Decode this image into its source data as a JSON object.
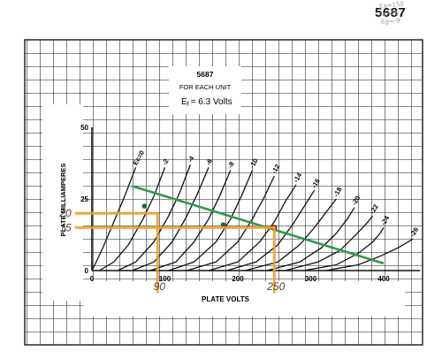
{
  "page": {
    "tube_number": "5687",
    "pencil_note": [
      "Ea=150",
      "Ia=20",
      "Eg=-9"
    ]
  },
  "info_box": {
    "line1": "5687",
    "line2": "FOR EACH UNIT",
    "line3_symbol": "E",
    "line3_sub": "f",
    "line3_rest": "= 6.3 Volts"
  },
  "colors": {
    "grid": "#1a1a1a",
    "curve": "#111111",
    "load_line": "#2e9a4a",
    "markers": "#f0a030",
    "handwriting": "#5a3a2a"
  },
  "chart_data": {
    "type": "line",
    "title": "",
    "xlabel": "PLATE VOLTS",
    "ylabel": "PLATE MILLIAMPERES",
    "xlim": [
      0,
      450
    ],
    "ylim": [
      0,
      50
    ],
    "x_ticks": [
      0,
      100,
      200,
      300,
      400
    ],
    "y_ticks": [
      0,
      25,
      50
    ],
    "grid": true,
    "series": [
      {
        "name": "Ec=0",
        "points": [
          [
            0,
            0
          ],
          [
            5,
            2.5
          ],
          [
            15,
            8
          ],
          [
            30,
            17
          ],
          [
            45,
            26
          ],
          [
            60,
            36
          ]
        ]
      },
      {
        "name": "-2",
        "points": [
          [
            10,
            0
          ],
          [
            30,
            3
          ],
          [
            50,
            9
          ],
          [
            70,
            18
          ],
          [
            85,
            26
          ],
          [
            100,
            36
          ]
        ]
      },
      {
        "name": "-4",
        "points": [
          [
            35,
            0
          ],
          [
            60,
            3
          ],
          [
            85,
            10
          ],
          [
            105,
            19
          ],
          [
            120,
            27
          ],
          [
            135,
            37
          ]
        ]
      },
      {
        "name": "-6",
        "points": [
          [
            55,
            0
          ],
          [
            85,
            3
          ],
          [
            110,
            10
          ],
          [
            130,
            19
          ],
          [
            145,
            27
          ],
          [
            160,
            36
          ]
        ]
      },
      {
        "name": "-8",
        "points": [
          [
            80,
            0
          ],
          [
            115,
            3
          ],
          [
            140,
            10
          ],
          [
            160,
            18
          ],
          [
            175,
            26
          ],
          [
            190,
            35
          ]
        ]
      },
      {
        "name": "-10",
        "points": [
          [
            105,
            0
          ],
          [
            140,
            3
          ],
          [
            170,
            10
          ],
          [
            190,
            18
          ],
          [
            205,
            26
          ],
          [
            220,
            35
          ]
        ]
      },
      {
        "name": "-12",
        "points": [
          [
            130,
            0
          ],
          [
            170,
            3
          ],
          [
            200,
            10
          ],
          [
            220,
            18
          ],
          [
            235,
            25
          ],
          [
            250,
            33
          ]
        ]
      },
      {
        "name": "-14",
        "points": [
          [
            160,
            0
          ],
          [
            200,
            3
          ],
          [
            230,
            10
          ],
          [
            250,
            17
          ],
          [
            265,
            24
          ],
          [
            280,
            30
          ]
        ]
      },
      {
        "name": "-16",
        "points": [
          [
            185,
            0
          ],
          [
            225,
            3
          ],
          [
            255,
            9
          ],
          [
            275,
            16
          ],
          [
            290,
            22
          ],
          [
            305,
            28
          ]
        ]
      },
      {
        "name": "-18",
        "points": [
          [
            210,
            0
          ],
          [
            255,
            3
          ],
          [
            285,
            9
          ],
          [
            305,
            15
          ],
          [
            320,
            20
          ],
          [
            335,
            25
          ]
        ]
      },
      {
        "name": "-20",
        "points": [
          [
            240,
            0
          ],
          [
            285,
            3
          ],
          [
            315,
            8
          ],
          [
            335,
            13
          ],
          [
            350,
            18
          ],
          [
            360,
            22
          ]
        ]
      },
      {
        "name": "-22",
        "points": [
          [
            265,
            0
          ],
          [
            310,
            3
          ],
          [
            340,
            7
          ],
          [
            360,
            12
          ],
          [
            375,
            16
          ],
          [
            385,
            19
          ]
        ]
      },
      {
        "name": "-24",
        "points": [
          [
            290,
            0
          ],
          [
            335,
            2
          ],
          [
            365,
            6
          ],
          [
            385,
            10
          ],
          [
            395,
            13
          ],
          [
            400,
            15
          ]
        ]
      },
      {
        "name": "-26",
        "points": [
          [
            320,
            0
          ],
          [
            365,
            2
          ],
          [
            395,
            5
          ],
          [
            420,
            8
          ],
          [
            440,
            11
          ]
        ]
      }
    ],
    "load_line": {
      "points": [
        [
          55,
          29.5
        ],
        [
          400,
          2.5
        ]
      ]
    },
    "load_line_dots": [
      [
        72,
        22.5
      ],
      [
        180,
        16
      ]
    ],
    "operating_point": [
      [
        250,
        15
      ]
    ],
    "handwritten_marks": {
      "y_values": [
        {
          "label": "20",
          "y": 20
        },
        {
          "label": "15",
          "y": 15
        }
      ],
      "x_values": [
        {
          "label": "90",
          "x": 90
        },
        {
          "label": "250",
          "x": 250
        }
      ]
    }
  }
}
